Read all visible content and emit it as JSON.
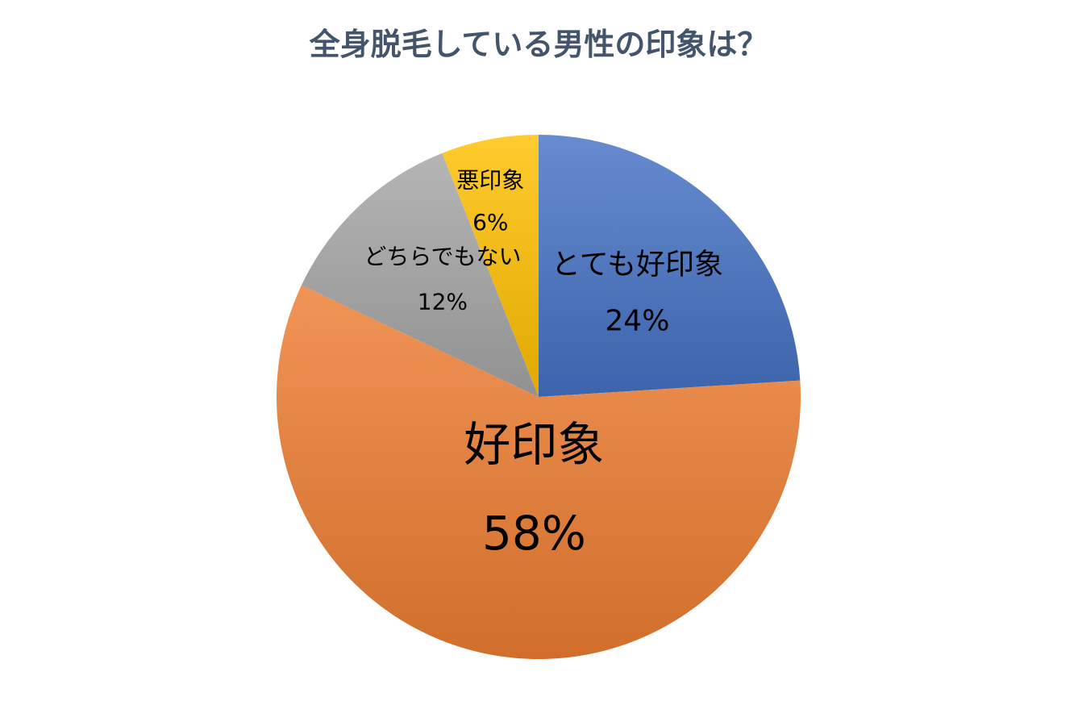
{
  "chart_data": {
    "type": "pie",
    "title": "全身脱毛している男性の印象は？",
    "slices": [
      {
        "label": "とても好印象",
        "value": 24,
        "value_label": "24%",
        "color": "#4472C4"
      },
      {
        "label": "好印象",
        "value": 58,
        "value_label": "58%",
        "color": "#ED7D31"
      },
      {
        "label": "どちらでもない",
        "value": 12,
        "value_label": "12%",
        "color": "#A5A5A5"
      },
      {
        "label": "悪印象",
        "value": 6,
        "value_label": "6%",
        "color": "#FFC000"
      }
    ],
    "start_angle_deg": 0,
    "direction": "clockwise",
    "legend": "none"
  }
}
